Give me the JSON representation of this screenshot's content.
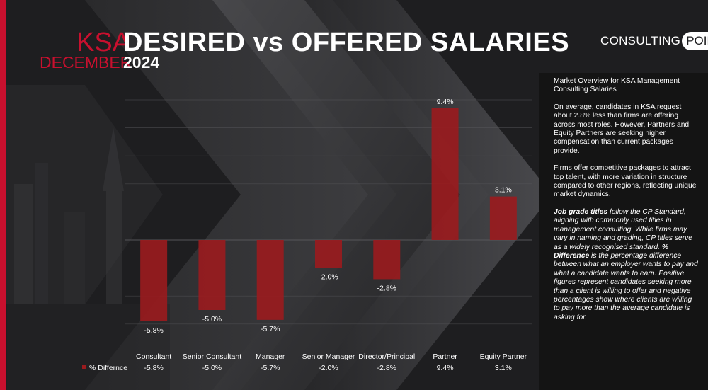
{
  "header": {
    "region": "KSA",
    "title": "DESIRED vs OFFERED SALARIES",
    "month": "DECEMBER",
    "year": "2024"
  },
  "logo": {
    "word": "CONSULTING",
    "accent": "POINT"
  },
  "colors": {
    "accent": "#c8102e",
    "bar": "#9b1b1e",
    "background": "#1c1c1e",
    "panel": "#141414"
  },
  "side_panel": {
    "heading": "Market Overview for KSA Management Consulting Salaries",
    "para1": "On average, candidates in KSA request about 2.8% less than firms are offering across most roles. However, Partners and Equity Partners are seeking higher compensation than current packages provide.",
    "para2": "Firms offer competitive packages to attract top talent, with more variation in structure compared to other regions, reflecting unique market dynamics.",
    "note_bold1": "Job grade titles",
    "note_text1": " follow the CP Standard, aligning with commonly used titles in management consulting. While firms may vary in naming and grading, CP titles serve as a widely recognised standard. ",
    "note_bold2": "% Difference",
    "note_text2": " is the percentage difference between what an employer wants to pay and what a candidate wants to earn. Positive figures represent candidates seeking more than a client is willing to offer and negative percentages show where clients are willing to pay more than the average candidate is asking for."
  },
  "chart_data": {
    "type": "bar",
    "categories": [
      "Consultant",
      "Senior Consultant",
      "Manager",
      "Senior Manager",
      "Director/Principal",
      "Partner",
      "Equity Partner"
    ],
    "series": [
      {
        "name": "% Differnce",
        "values": [
          -5.8,
          -5.0,
          -5.7,
          -2.0,
          -2.8,
          9.4,
          3.1
        ]
      }
    ],
    "data_labels": [
      "-5.8%",
      "-5.0%",
      "-5.7%",
      "-2.0%",
      "-2.8%",
      "9.4%",
      "3.1%"
    ],
    "ylim": [
      -6,
      10
    ],
    "grid": true,
    "table_below": true
  }
}
